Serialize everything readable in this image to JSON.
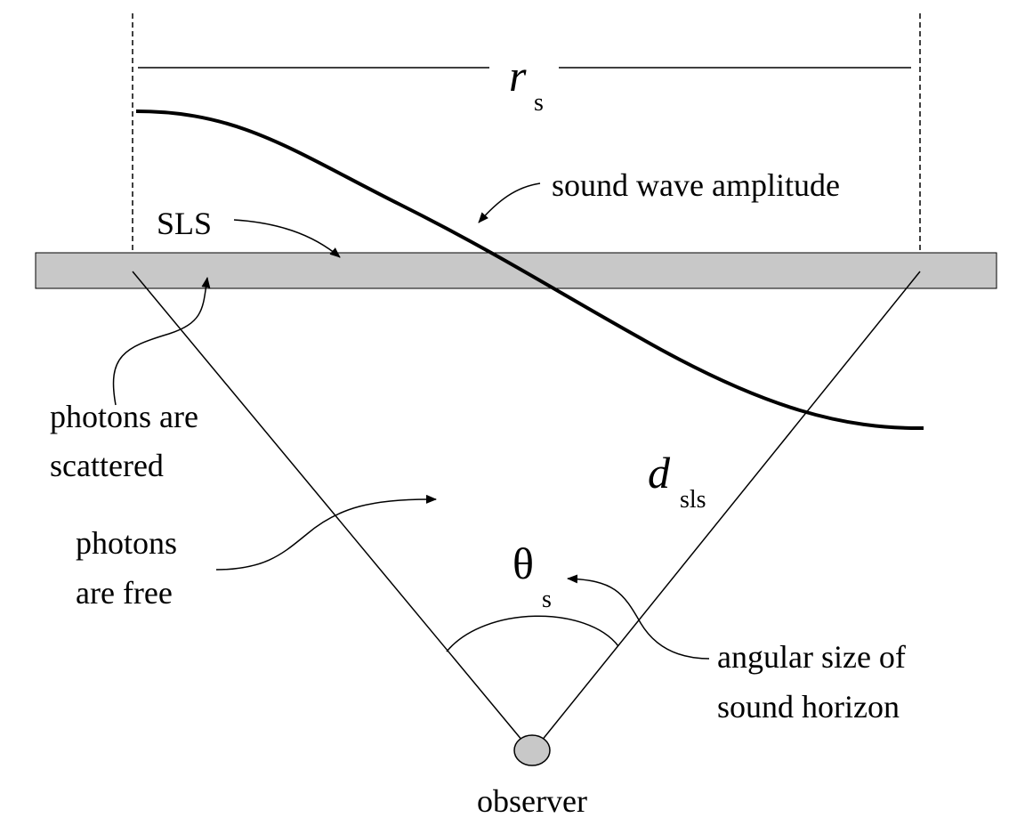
{
  "diagram": {
    "width_label": {
      "symbol": "r",
      "subscript": "s"
    },
    "wave_label": "sound wave amplitude",
    "surface_label": "SLS",
    "scattered_label": [
      "photons are",
      "scattered"
    ],
    "free_label": [
      "photons",
      "are free"
    ],
    "distance_label": {
      "symbol": "d",
      "subscript": "sls"
    },
    "angle_label": {
      "symbol": "θ",
      "subscript": "s"
    },
    "angle_caption": [
      "angular size of",
      "sound horizon"
    ],
    "observer_label": "observer",
    "colors": {
      "band_fill": "#c8c8c8",
      "observer_fill": "#c8c8c8",
      "stroke": "#000000"
    }
  }
}
